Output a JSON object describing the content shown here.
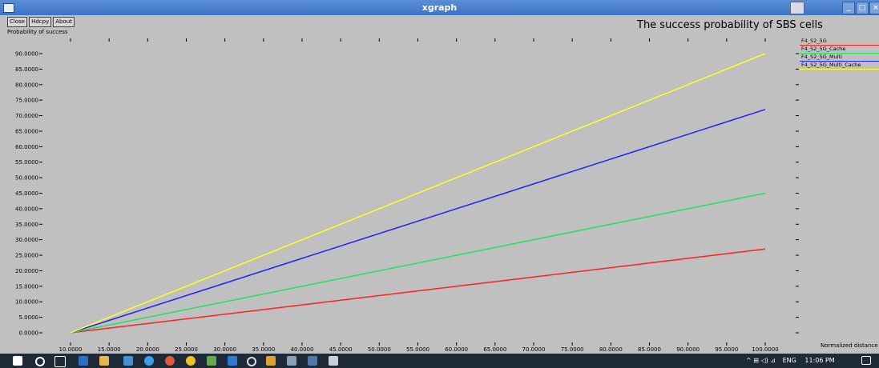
{
  "window": {
    "title": "xgraph"
  },
  "toolbar": {
    "close": "Close",
    "hcopy": "Hdcpy",
    "about": "About"
  },
  "taskbar": {
    "tray_symbols": "^ ⊞ ◁) ⊿",
    "language": "ENG",
    "time": "11:06 PM"
  },
  "colors": {
    "F4_S2_5G": "#ff2020",
    "F4_S2_5G_Cache": "#20e060",
    "F4_S2_5G_Multi": "#2020ff",
    "F4_S2_5G_Multi_Cache": "#ffff20"
  },
  "chart_data": {
    "type": "line",
    "title": "The success probability of SBS cells",
    "ylabel": "Probability of success",
    "xlabel": "Normalized distance",
    "xlim": [
      10,
      100
    ],
    "ylim": [
      0,
      90
    ],
    "x_ticks": [
      "10.0000",
      "15.0000",
      "20.0000",
      "25.0000",
      "30.0000",
      "35.0000",
      "40.0000",
      "45.0000",
      "50.0000",
      "55.0000",
      "60.0000",
      "65.0000",
      "70.0000",
      "75.0000",
      "80.0000",
      "85.0000",
      "90.0000",
      "95.0000",
      "100.0000"
    ],
    "y_ticks": [
      "0.0000",
      "5.0000",
      "10.0000",
      "15.0000",
      "20.0000",
      "25.0000",
      "30.0000",
      "35.0000",
      "40.0000",
      "45.0000",
      "50.0000",
      "55.0000",
      "60.0000",
      "65.0000",
      "70.0000",
      "75.0000",
      "80.0000",
      "85.0000",
      "90.0000"
    ],
    "grid": false,
    "legend_position": "top-right",
    "series": [
      {
        "name": "F4_S2_5G",
        "color": "#ff2020",
        "x": [
          10,
          100
        ],
        "y": [
          0,
          27
        ]
      },
      {
        "name": "F4_S2_5G_Cache",
        "color": "#20e060",
        "x": [
          10,
          100
        ],
        "y": [
          0,
          45
        ]
      },
      {
        "name": "F4_S2_5G_Multi",
        "color": "#2020ff",
        "x": [
          10,
          100
        ],
        "y": [
          0,
          72
        ]
      },
      {
        "name": "F4_S2_5G_Multi_Cache",
        "color": "#ffff20",
        "x": [
          10,
          100
        ],
        "y": [
          0,
          90
        ]
      }
    ]
  }
}
